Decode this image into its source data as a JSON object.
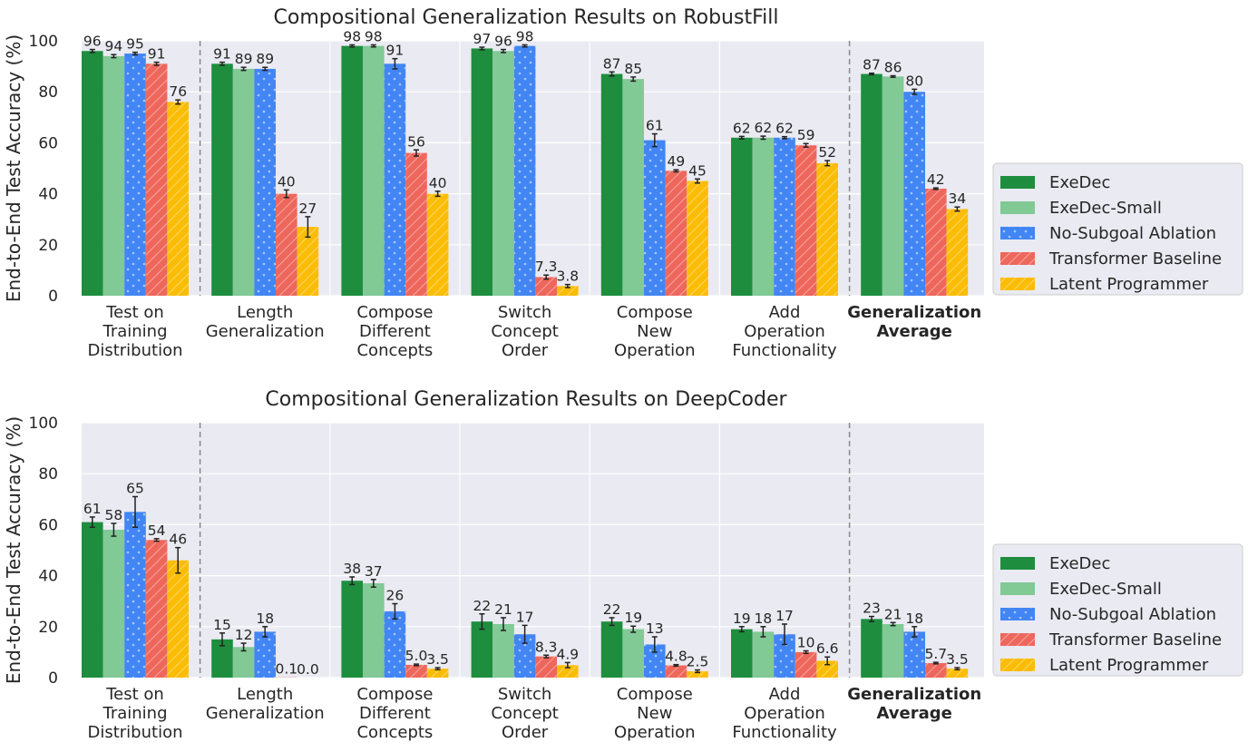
{
  "chart_data": [
    {
      "type": "bar",
      "title": "Compositional Generalization Results on RobustFill",
      "ylabel": "End-to-End Test Accuracy (%)",
      "ylim": [
        0,
        100
      ],
      "yticks": [
        0,
        20,
        40,
        60,
        80,
        100
      ],
      "grid": true,
      "legend_position": "right",
      "categories": [
        [
          "Test on",
          "Training",
          "Distribution"
        ],
        [
          "Length",
          "Generalization"
        ],
        [
          "Compose",
          "Different",
          "Concepts"
        ],
        [
          "Switch",
          "Concept",
          "Order"
        ],
        [
          "Compose",
          "New",
          "Operation"
        ],
        [
          "Add",
          "Operation",
          "Functionality"
        ],
        [
          "Generalization",
          "Average"
        ]
      ],
      "bold_categories": [
        6
      ],
      "series": [
        {
          "name": "ExeDec",
          "color": "#1e8e3e",
          "pattern": "solid",
          "values": [
            96,
            91,
            98,
            97,
            87,
            62,
            87
          ],
          "labels": [
            "96",
            "91",
            "98",
            "97",
            "87",
            "62",
            "87"
          ],
          "errors": [
            0.6,
            0.6,
            0.4,
            0.5,
            0.8,
            0.5,
            0.3
          ]
        },
        {
          "name": "ExeDec-Small",
          "color": "#81c995",
          "pattern": "solid",
          "values": [
            94,
            89,
            98,
            96,
            85,
            62,
            86
          ],
          "labels": [
            "94",
            "89",
            "98",
            "96",
            "85",
            "62",
            "86"
          ],
          "errors": [
            0.6,
            0.6,
            0.4,
            0.6,
            0.8,
            0.6,
            0.3
          ]
        },
        {
          "name": "No-Subgoal Ablation",
          "color": "#4285f4",
          "pattern": "dots",
          "values": [
            95,
            89,
            91,
            98,
            61,
            62,
            80
          ],
          "labels": [
            "95",
            "89",
            "91",
            "98",
            "61",
            "62",
            "80"
          ],
          "errors": [
            0.5,
            0.6,
            2,
            0.4,
            2.5,
            0.4,
            1
          ]
        },
        {
          "name": "Transformer Baseline",
          "color": "#ee675c",
          "pattern": "hatch",
          "values": [
            91,
            40,
            56,
            7.3,
            49,
            59,
            42
          ],
          "labels": [
            "91",
            "40",
            "56",
            "7.3",
            "49",
            "59",
            "42"
          ],
          "errors": [
            0.6,
            1.5,
            1.2,
            0.8,
            0.4,
            0.7,
            0.3
          ]
        },
        {
          "name": "Latent Programmer",
          "color": "#fbbc04",
          "pattern": "hatch",
          "values": [
            76,
            27,
            40,
            3.8,
            45,
            52,
            34
          ],
          "labels": [
            "76",
            "27",
            "40",
            "3.8",
            "45",
            "52",
            "34"
          ],
          "errors": [
            0.8,
            4,
            1,
            0.6,
            0.8,
            1,
            0.8
          ]
        }
      ]
    },
    {
      "type": "bar",
      "title": "Compositional Generalization Results on DeepCoder",
      "ylabel": "End-to-End Test Accuracy (%)",
      "ylim": [
        0,
        100
      ],
      "yticks": [
        0,
        20,
        40,
        60,
        80,
        100
      ],
      "grid": true,
      "legend_position": "right",
      "categories": [
        [
          "Test on",
          "Training",
          "Distribution"
        ],
        [
          "Length",
          "Generalization"
        ],
        [
          "Compose",
          "Different",
          "Concepts"
        ],
        [
          "Switch",
          "Concept",
          "Order"
        ],
        [
          "Compose",
          "New",
          "Operation"
        ],
        [
          "Add",
          "Operation",
          "Functionality"
        ],
        [
          "Generalization",
          "Average"
        ]
      ],
      "bold_categories": [
        6
      ],
      "series": [
        {
          "name": "ExeDec",
          "color": "#1e8e3e",
          "pattern": "solid",
          "values": [
            61,
            15,
            38,
            22,
            22,
            19,
            23
          ],
          "labels": [
            "61",
            "15",
            "38",
            "22",
            "22",
            "19",
            "23"
          ],
          "errors": [
            2,
            2.5,
            1.5,
            3,
            1.5,
            1,
            1
          ]
        },
        {
          "name": "ExeDec-Small",
          "color": "#81c995",
          "pattern": "solid",
          "values": [
            58,
            12,
            37,
            21,
            19,
            18,
            21
          ],
          "labels": [
            "58",
            "12",
            "37",
            "21",
            "19",
            "18",
            "21"
          ],
          "errors": [
            2.5,
            1.5,
            1.5,
            2.5,
            1.2,
            2,
            0.6
          ]
        },
        {
          "name": "No-Subgoal Ablation",
          "color": "#4285f4",
          "pattern": "dots",
          "values": [
            65,
            18,
            26,
            17,
            13,
            17,
            18
          ],
          "labels": [
            "65",
            "18",
            "26",
            "17",
            "13",
            "17",
            "18"
          ],
          "errors": [
            6,
            2,
            3,
            3.5,
            3,
            4,
            2
          ]
        },
        {
          "name": "Transformer Baseline",
          "color": "#ee675c",
          "pattern": "hatch",
          "values": [
            54,
            0.1,
            5.0,
            8.3,
            4.8,
            10,
            5.7
          ],
          "labels": [
            "54",
            "0.1",
            "5.0",
            "8.3",
            "4.8",
            "10",
            "5.7"
          ],
          "errors": [
            0.5,
            0,
            0.3,
            0.5,
            0.3,
            0.5,
            0.3
          ]
        },
        {
          "name": "Latent Programmer",
          "color": "#fbbc04",
          "pattern": "hatch",
          "values": [
            46,
            0.0,
            3.5,
            4.9,
            2.5,
            6.6,
            3.5
          ],
          "labels": [
            "46",
            "0.0",
            "3.5",
            "4.9",
            "2.5",
            "6.6",
            "3.5"
          ],
          "errors": [
            5,
            0,
            0.4,
            1,
            0.5,
            1.5,
            0.4
          ]
        }
      ]
    }
  ]
}
